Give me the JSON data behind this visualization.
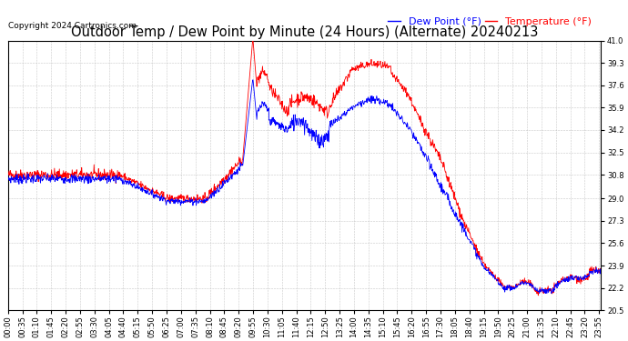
{
  "title": "Outdoor Temp / Dew Point by Minute (24 Hours) (Alternate) 20240213",
  "copyright": "Copyright 2024 Cartronics.com",
  "legend_dew": "Dew Point (°F)",
  "legend_temp": "Temperature (°F)",
  "ylim": [
    20.5,
    41.0
  ],
  "yticks": [
    20.5,
    22.2,
    23.9,
    25.6,
    27.3,
    29.0,
    30.8,
    32.5,
    34.2,
    35.9,
    37.6,
    39.3,
    41.0
  ],
  "color_temp": "#ff0000",
  "color_dew": "#0000ff",
  "bg_color": "#ffffff",
  "grid_color": "#bbbbbb",
  "title_fontsize": 10.5,
  "copyright_fontsize": 6.5,
  "legend_fontsize": 8,
  "tick_fontsize": 6,
  "total_minutes": 1440
}
